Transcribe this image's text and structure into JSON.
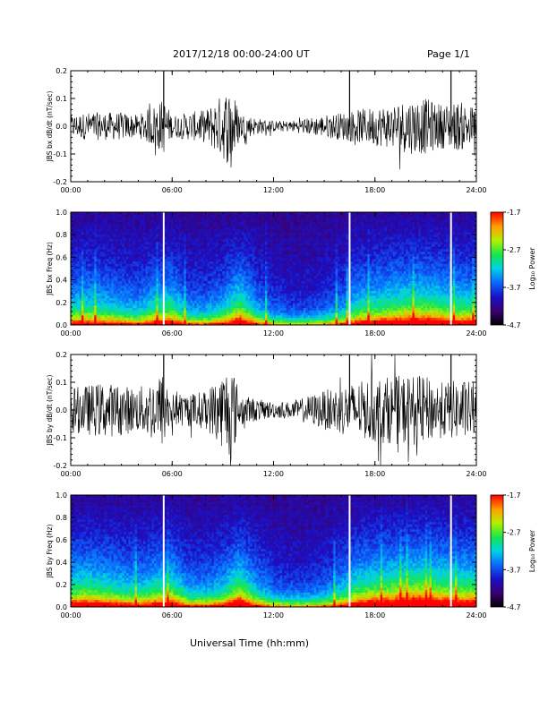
{
  "header": {
    "title": "2017/12/18  00:00-24:00 UT",
    "page": "Page 1/1"
  },
  "xaxis_title": "Universal Time (hh:mm)",
  "colors": {
    "trace": "#000000",
    "data_gap": "#ffffff",
    "background": "#ffffff"
  },
  "chart_data": [
    {
      "type": "line",
      "title": "",
      "ylabel": "JBS bx dB/dt (nT/sec)",
      "xlabel": "",
      "xlim": [
        "00:00",
        "24:00"
      ],
      "ylim": [
        -0.2,
        0.2
      ],
      "xticks": [
        "00:00",
        "06:00",
        "12:00",
        "18:00",
        "24:00"
      ],
      "yticks": [
        "-0.2",
        "-0.1",
        "0.0",
        "0.1",
        "0.2"
      ],
      "data_gaps_hour": [
        5.5,
        16.5,
        22.5
      ],
      "grid": false,
      "series": [
        {
          "x_hour": [
            0,
            1,
            2,
            3,
            4,
            5,
            5.5,
            6,
            7,
            8,
            9,
            9.5,
            10,
            11,
            12,
            13,
            14,
            15,
            16,
            17,
            18,
            19,
            20,
            21,
            22,
            23,
            24
          ],
          "envelope": [
            0.04,
            0.05,
            0.05,
            0.05,
            0.04,
            0.08,
            0.1,
            0.04,
            0.05,
            0.06,
            0.12,
            0.15,
            0.05,
            0.03,
            0.02,
            0.02,
            0.03,
            0.04,
            0.05,
            0.06,
            0.07,
            0.08,
            0.1,
            0.1,
            0.08,
            0.09,
            0.07
          ]
        }
      ]
    },
    {
      "type": "heatmap",
      "title": "",
      "ylabel": "JBS bx Freq (Hz)",
      "xlabel": "",
      "xlim": [
        "00:00",
        "24:00"
      ],
      "ylim": [
        0.0,
        1.0
      ],
      "xticks": [
        "00:00",
        "06:00",
        "12:00",
        "18:00",
        "24:00"
      ],
      "yticks": [
        "0.0",
        "0.2",
        "0.4",
        "0.6",
        "0.8",
        "1.0"
      ],
      "colorbar": {
        "label": "Log₁₀ Power",
        "range": [
          -4.7,
          -1.7
        ],
        "ticks": [
          "-1.7",
          "-2.7",
          "-3.7",
          "-4.7"
        ]
      },
      "data_gaps_hour": [
        5.5,
        16.5,
        22.5
      ],
      "activity_by_hour": [
        0.5,
        0.55,
        0.5,
        0.45,
        0.4,
        0.55,
        0.6,
        0.35,
        0.35,
        0.45,
        0.7,
        0.4,
        0.25,
        0.2,
        0.2,
        0.25,
        0.35,
        0.55,
        0.6,
        0.65,
        0.7,
        0.7,
        0.65,
        0.6,
        0.6
      ]
    },
    {
      "type": "line",
      "title": "",
      "ylabel": "JBS by dB/dt (nT/sec)",
      "xlabel": "",
      "xlim": [
        "00:00",
        "24:00"
      ],
      "ylim": [
        -0.2,
        0.2
      ],
      "xticks": [
        "00:00",
        "06:00",
        "12:00",
        "18:00",
        "24:00"
      ],
      "yticks": [
        "-0.2",
        "-0.1",
        "0.0",
        "0.1",
        "0.2"
      ],
      "data_gaps_hour": [
        5.5,
        16.5,
        22.5
      ],
      "grid": false,
      "series": [
        {
          "x_hour": [
            0,
            1,
            2,
            3,
            4,
            5,
            5.5,
            6,
            7,
            8,
            9,
            9.5,
            10,
            11,
            12,
            13,
            14,
            15,
            16,
            17,
            18,
            19,
            20,
            21,
            22,
            23,
            24
          ],
          "envelope": [
            0.08,
            0.09,
            0.1,
            0.09,
            0.08,
            0.12,
            0.14,
            0.06,
            0.06,
            0.07,
            0.14,
            0.18,
            0.06,
            0.04,
            0.03,
            0.03,
            0.05,
            0.07,
            0.09,
            0.1,
            0.12,
            0.12,
            0.13,
            0.12,
            0.1,
            0.11,
            0.1
          ]
        }
      ]
    },
    {
      "type": "heatmap",
      "title": "",
      "ylabel": "JBS by Freq (Hz)",
      "xlabel": "",
      "xlim": [
        "00:00",
        "24:00"
      ],
      "ylim": [
        0.0,
        1.0
      ],
      "xticks": [
        "00:00",
        "06:00",
        "12:00",
        "18:00",
        "24:00"
      ],
      "yticks": [
        "0.0",
        "0.2",
        "0.4",
        "0.6",
        "0.8",
        "1.0"
      ],
      "colorbar": {
        "label": "Log₁₀ Power",
        "range": [
          -4.7,
          -1.7
        ],
        "ticks": [
          "-1.7",
          "-2.7",
          "-3.7",
          "-4.7"
        ]
      },
      "data_gaps_hour": [
        5.5,
        16.5,
        22.5
      ],
      "activity_by_hour": [
        0.6,
        0.65,
        0.6,
        0.55,
        0.5,
        0.6,
        0.65,
        0.4,
        0.4,
        0.5,
        0.75,
        0.45,
        0.3,
        0.25,
        0.25,
        0.3,
        0.45,
        0.65,
        0.7,
        0.75,
        0.8,
        0.8,
        0.75,
        0.7,
        0.7
      ]
    }
  ]
}
